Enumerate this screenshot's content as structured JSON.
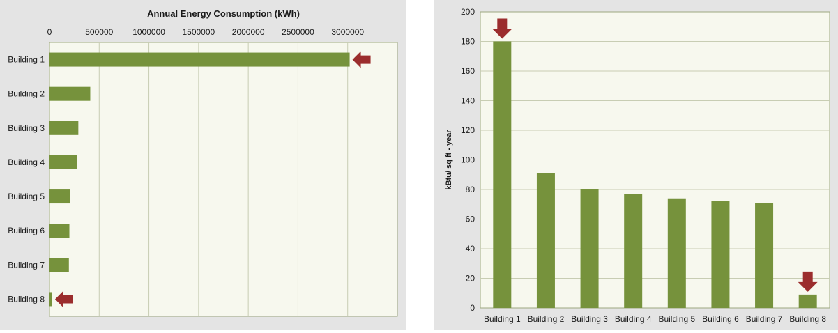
{
  "colors": {
    "panel_bg": "#e4e4e4",
    "plot_bg": "#f7f8ee",
    "plot_border": "#9ea880",
    "grid": "#c8cdb3",
    "bar": "#76923c",
    "arrow": "#9b2d2d",
    "text": "#1a1a1a"
  },
  "chart_data": [
    {
      "type": "bar",
      "orientation": "horizontal",
      "title": "Annual Energy Consumption (kWh)",
      "categories": [
        "Building 1",
        "Building 2",
        "Building 3",
        "Building 4",
        "Building 5",
        "Building 6",
        "Building 7",
        "Building 8"
      ],
      "values": [
        3020000,
        410000,
        290000,
        280000,
        210000,
        200000,
        195000,
        28000
      ],
      "xlim": [
        0,
        3500000
      ],
      "xticks": [
        0,
        500000,
        1000000,
        1500000,
        2000000,
        2500000,
        3000000
      ],
      "xtick_labels": [
        "0",
        "500000",
        "1000000",
        "1500000",
        "2000000",
        "2500000",
        "3000000"
      ],
      "axis_position": "top",
      "grid": "vertical",
      "legend": "none",
      "highlighted": [
        "Building 1",
        "Building 8"
      ],
      "highlight_marker": "arrow-left-icon"
    },
    {
      "type": "bar",
      "orientation": "vertical",
      "ylabel": "kBtu/ sq ft - year",
      "categories": [
        "Building 1",
        "Building 2",
        "Building 3",
        "Building 4",
        "Building 5",
        "Building 6",
        "Building 7",
        "Building 8"
      ],
      "values": [
        180,
        91,
        80,
        77,
        74,
        72,
        71,
        9
      ],
      "ylim": [
        0,
        200
      ],
      "yticks": [
        0,
        20,
        40,
        60,
        80,
        100,
        120,
        140,
        160,
        180,
        200
      ],
      "ytick_labels": [
        "0",
        "20",
        "40",
        "60",
        "80",
        "100",
        "120",
        "140",
        "160",
        "180",
        "200"
      ],
      "grid": "horizontal",
      "legend": "none",
      "highlighted": [
        "Building 1",
        "Building 8"
      ],
      "highlight_marker": "arrow-down-icon"
    }
  ]
}
